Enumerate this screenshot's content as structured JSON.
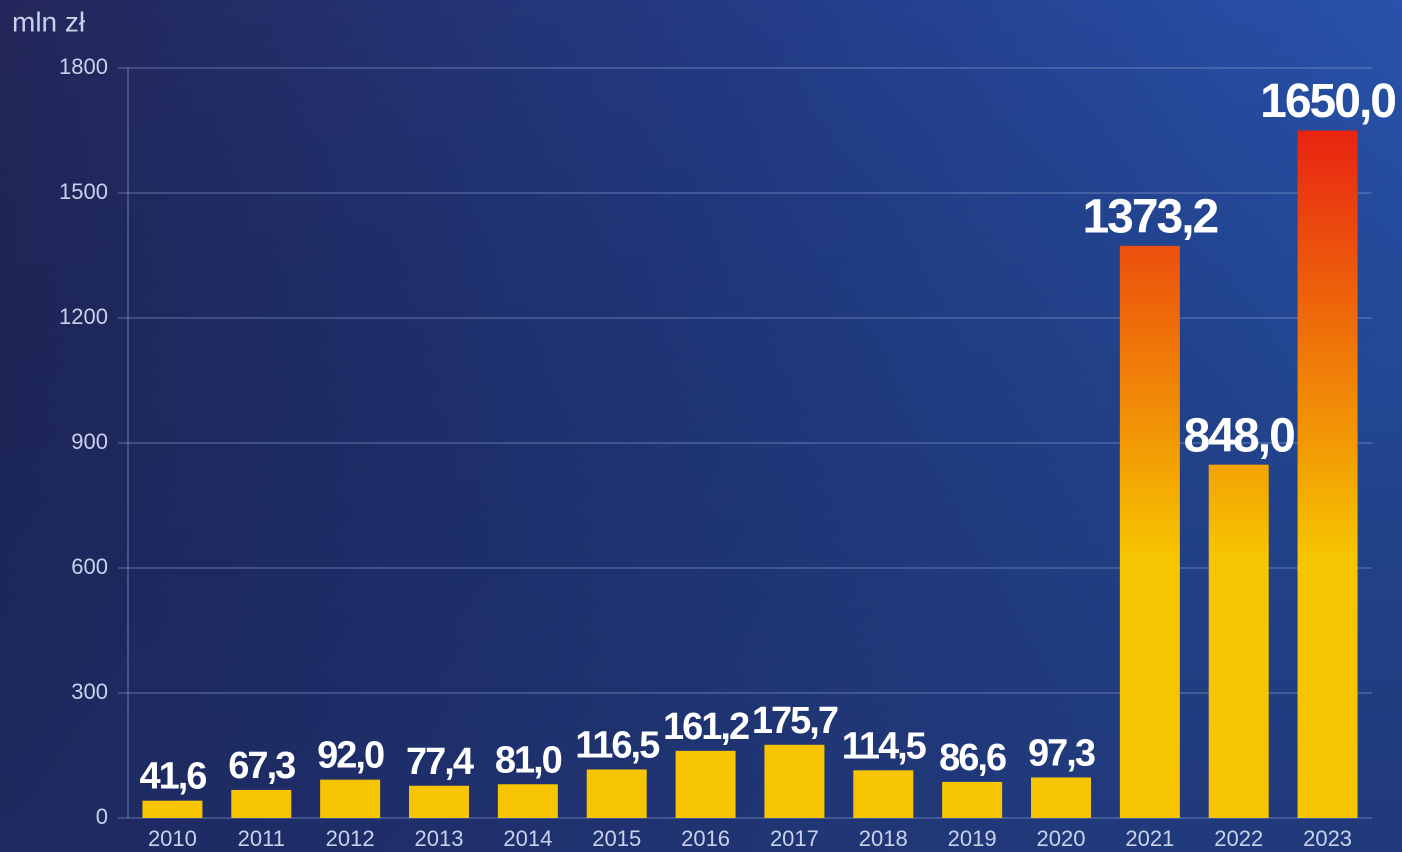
{
  "chart_data": {
    "type": "bar",
    "y_label": "mln zł",
    "categories": [
      "2010",
      "2011",
      "2012",
      "2013",
      "2014",
      "2015",
      "2016",
      "2017",
      "2018",
      "2019",
      "2020",
      "2021",
      "2022",
      "2023"
    ],
    "values": [
      41.6,
      67.3,
      92.0,
      77.4,
      81.0,
      116.5,
      161.2,
      175.7,
      114.5,
      86.6,
      97.3,
      1373.2,
      848.0,
      1650.0
    ],
    "value_labels": [
      "41,6",
      "67,3",
      "92,0",
      "77,4",
      "81,0",
      "116,5",
      "161,2",
      "175,7",
      "114,5",
      "86,6",
      "97,3",
      "1373,2",
      "848,0",
      "1650,0"
    ],
    "colors": [
      "#f6c400",
      "#e60c14"
    ],
    "ylim": [
      0,
      1800
    ],
    "yticks": [
      0,
      300,
      600,
      900,
      1200,
      1500,
      1800
    ],
    "grid": true
  }
}
